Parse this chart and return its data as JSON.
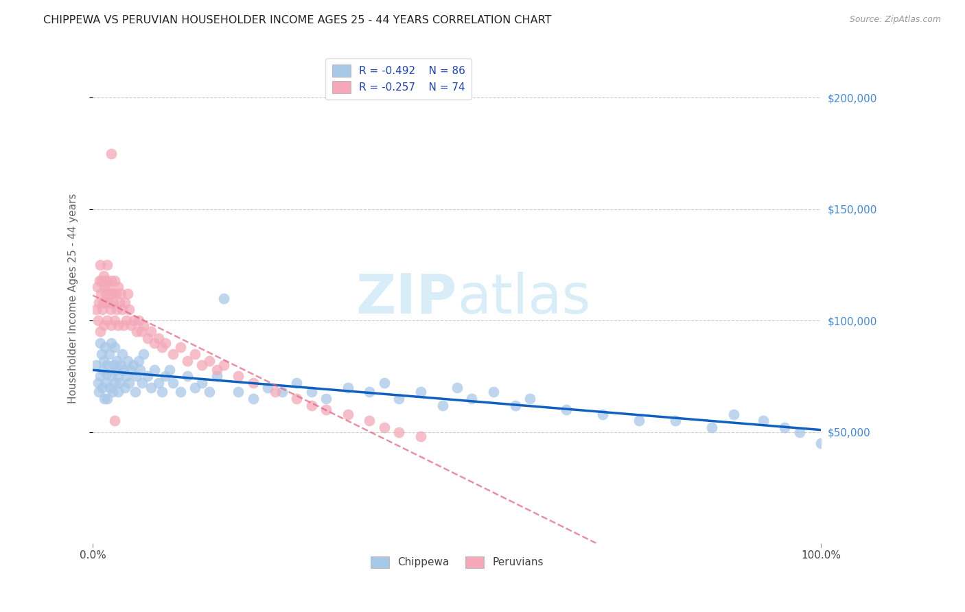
{
  "title": "CHIPPEWA VS PERUVIAN HOUSEHOLDER INCOME AGES 25 - 44 YEARS CORRELATION CHART",
  "source": "Source: ZipAtlas.com",
  "ylabel": "Householder Income Ages 25 - 44 years",
  "chippewa_R": -0.492,
  "chippewa_N": 86,
  "peruvian_R": -0.257,
  "peruvian_N": 74,
  "chippewa_color": "#a8c8e8",
  "peruvian_color": "#f4a8b8",
  "chippewa_line_color": "#1060c0",
  "peruvian_line_color": "#e06080",
  "watermark_color": "#d8edf8",
  "ytick_labels": [
    "$50,000",
    "$100,000",
    "$150,000",
    "$200,000"
  ],
  "ytick_values": [
    50000,
    100000,
    150000,
    200000
  ],
  "xtick_labels": [
    "0.0%",
    "100.0%"
  ],
  "xlim": [
    0.0,
    1.0
  ],
  "ylim": [
    0,
    220000
  ],
  "background_color": "#ffffff",
  "chippewa_x": [
    0.005,
    0.007,
    0.008,
    0.01,
    0.01,
    0.012,
    0.013,
    0.014,
    0.015,
    0.016,
    0.017,
    0.018,
    0.019,
    0.02,
    0.02,
    0.022,
    0.023,
    0.025,
    0.025,
    0.027,
    0.028,
    0.03,
    0.03,
    0.032,
    0.033,
    0.035,
    0.035,
    0.037,
    0.038,
    0.04,
    0.042,
    0.044,
    0.046,
    0.048,
    0.05,
    0.052,
    0.055,
    0.058,
    0.06,
    0.063,
    0.065,
    0.068,
    0.07,
    0.075,
    0.08,
    0.085,
    0.09,
    0.095,
    0.1,
    0.105,
    0.11,
    0.12,
    0.13,
    0.14,
    0.15,
    0.16,
    0.17,
    0.18,
    0.2,
    0.22,
    0.24,
    0.26,
    0.28,
    0.3,
    0.32,
    0.35,
    0.38,
    0.4,
    0.42,
    0.45,
    0.48,
    0.5,
    0.52,
    0.55,
    0.58,
    0.6,
    0.65,
    0.7,
    0.75,
    0.8,
    0.85,
    0.88,
    0.92,
    0.95,
    0.97,
    1.0
  ],
  "chippewa_y": [
    80000,
    72000,
    68000,
    90000,
    75000,
    85000,
    70000,
    78000,
    82000,
    65000,
    88000,
    72000,
    76000,
    80000,
    65000,
    85000,
    70000,
    90000,
    75000,
    68000,
    80000,
    88000,
    72000,
    78000,
    82000,
    75000,
    68000,
    72000,
    80000,
    85000,
    78000,
    70000,
    75000,
    82000,
    72000,
    78000,
    80000,
    68000,
    75000,
    82000,
    78000,
    72000,
    85000,
    75000,
    70000,
    78000,
    72000,
    68000,
    75000,
    78000,
    72000,
    68000,
    75000,
    70000,
    72000,
    68000,
    75000,
    110000,
    68000,
    65000,
    70000,
    68000,
    72000,
    68000,
    65000,
    70000,
    68000,
    72000,
    65000,
    68000,
    62000,
    70000,
    65000,
    68000,
    62000,
    65000,
    60000,
    58000,
    55000,
    55000,
    52000,
    58000,
    55000,
    52000,
    50000,
    45000
  ],
  "peruvian_x": [
    0.005,
    0.006,
    0.007,
    0.008,
    0.009,
    0.01,
    0.01,
    0.011,
    0.012,
    0.013,
    0.014,
    0.015,
    0.015,
    0.016,
    0.017,
    0.018,
    0.019,
    0.02,
    0.02,
    0.021,
    0.022,
    0.023,
    0.024,
    0.025,
    0.025,
    0.027,
    0.028,
    0.03,
    0.03,
    0.032,
    0.033,
    0.035,
    0.035,
    0.037,
    0.038,
    0.04,
    0.042,
    0.044,
    0.046,
    0.048,
    0.05,
    0.053,
    0.056,
    0.06,
    0.063,
    0.067,
    0.07,
    0.075,
    0.08,
    0.085,
    0.09,
    0.095,
    0.1,
    0.11,
    0.12,
    0.13,
    0.14,
    0.15,
    0.16,
    0.17,
    0.18,
    0.2,
    0.22,
    0.25,
    0.28,
    0.3,
    0.32,
    0.35,
    0.38,
    0.4,
    0.42,
    0.45,
    0.03,
    0.025
  ],
  "peruvian_y": [
    105000,
    115000,
    100000,
    108000,
    118000,
    125000,
    95000,
    112000,
    118000,
    105000,
    108000,
    120000,
    98000,
    115000,
    108000,
    112000,
    118000,
    125000,
    100000,
    115000,
    108000,
    112000,
    105000,
    118000,
    98000,
    112000,
    108000,
    118000,
    100000,
    112000,
    105000,
    115000,
    98000,
    108000,
    112000,
    105000,
    98000,
    108000,
    100000,
    112000,
    105000,
    98000,
    100000,
    95000,
    100000,
    95000,
    98000,
    92000,
    95000,
    90000,
    92000,
    88000,
    90000,
    85000,
    88000,
    82000,
    85000,
    80000,
    82000,
    78000,
    80000,
    75000,
    72000,
    68000,
    65000,
    62000,
    60000,
    58000,
    55000,
    52000,
    50000,
    48000,
    55000,
    175000
  ]
}
